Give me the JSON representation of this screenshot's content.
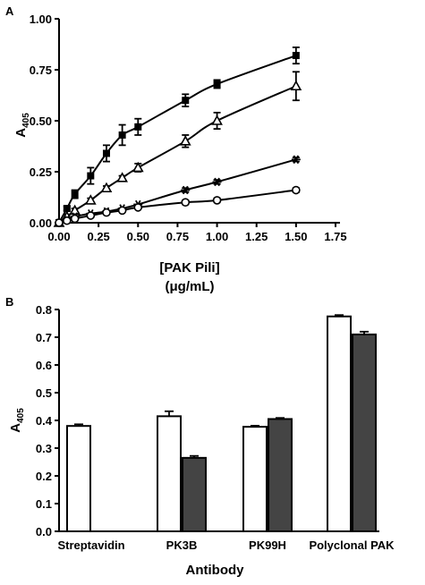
{
  "chart_data": [
    {
      "panel_label": "A",
      "type": "scatter",
      "title": "",
      "xlabel_line1": "[PAK Pili]",
      "xlabel_line2": "(μg/mL)",
      "ylabel_main": "A",
      "ylabel_sub": "405",
      "xlim": [
        0,
        1.75
      ],
      "ylim": [
        0,
        1.0
      ],
      "xticks": [
        "0.00",
        "0.25",
        "0.50",
        "0.75",
        "1.00",
        "1.25",
        "1.50",
        "1.75"
      ],
      "yticks": [
        "0.00",
        "0.25",
        "0.50",
        "0.75",
        "1.00"
      ],
      "grid": false,
      "series": [
        {
          "marker": "filled-square",
          "x": [
            0.0,
            0.05,
            0.1,
            0.2,
            0.3,
            0.4,
            0.5,
            0.8,
            1.0,
            1.5
          ],
          "y": [
            0.0,
            0.07,
            0.14,
            0.23,
            0.34,
            0.43,
            0.47,
            0.6,
            0.68,
            0.82
          ],
          "err": [
            0.0,
            0.01,
            0.02,
            0.04,
            0.04,
            0.05,
            0.04,
            0.03,
            0.02,
            0.04
          ]
        },
        {
          "marker": "open-triangle",
          "x": [
            0.0,
            0.05,
            0.1,
            0.2,
            0.3,
            0.4,
            0.5,
            0.8,
            1.0,
            1.5
          ],
          "y": [
            0.0,
            0.03,
            0.06,
            0.11,
            0.17,
            0.22,
            0.27,
            0.4,
            0.5,
            0.67
          ],
          "err": [
            0.0,
            0.01,
            0.01,
            0.01,
            0.01,
            0.01,
            0.02,
            0.03,
            0.04,
            0.07
          ]
        },
        {
          "marker": "asterisk",
          "x": [
            0.0,
            0.05,
            0.1,
            0.2,
            0.3,
            0.4,
            0.5,
            0.8,
            1.0,
            1.5
          ],
          "y": [
            0.0,
            0.015,
            0.03,
            0.045,
            0.055,
            0.07,
            0.09,
            0.16,
            0.2,
            0.31
          ],
          "err": [
            0.0,
            0.0,
            0.0,
            0.0,
            0.0,
            0.0,
            0.0,
            0.01,
            0.01,
            0.01
          ]
        },
        {
          "marker": "open-circle",
          "x": [
            0.0,
            0.05,
            0.1,
            0.2,
            0.3,
            0.4,
            0.5,
            0.8,
            1.0,
            1.5
          ],
          "y": [
            0.0,
            0.01,
            0.02,
            0.035,
            0.05,
            0.06,
            0.075,
            0.1,
            0.11,
            0.16
          ],
          "err": [
            0.0,
            0.0,
            0.0,
            0.0,
            0.0,
            0.0,
            0.0,
            0.01,
            0.01,
            0.01
          ]
        }
      ]
    },
    {
      "panel_label": "B",
      "type": "bar",
      "title": "",
      "xlabel": "Antibody",
      "ylabel_main": "A",
      "ylabel_sub": "405",
      "ylim": [
        0,
        0.8
      ],
      "yticks": [
        "0.0",
        "0.1",
        "0.2",
        "0.3",
        "0.4",
        "0.5",
        "0.6",
        "0.7",
        "0.8"
      ],
      "categories": [
        "Streptavidin",
        "PK3B",
        "PK99H",
        "Polyclonal PAK"
      ],
      "grid": false,
      "series": [
        {
          "color": "#ffffff",
          "values": [
            0.38,
            0.415,
            0.377,
            0.775
          ],
          "err": [
            0.006,
            0.018,
            0.004,
            0.005
          ]
        },
        {
          "color": "#444444",
          "values": [
            null,
            0.265,
            0.405,
            0.71
          ],
          "err": [
            null,
            0.007,
            0.004,
            0.01
          ]
        }
      ]
    }
  ]
}
